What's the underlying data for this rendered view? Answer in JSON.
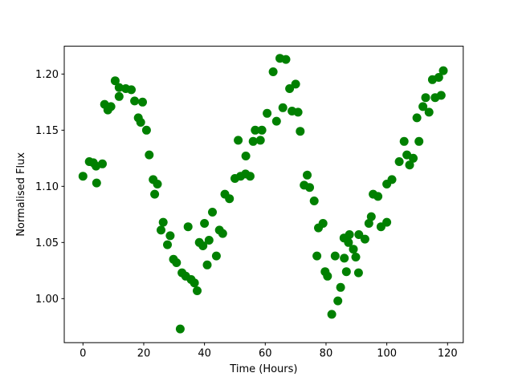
{
  "chart_data": {
    "type": "scatter",
    "title": "",
    "xlabel": "Time (Hours)",
    "ylabel": "Normalised Flux",
    "xlim": [
      -6.16,
      125.16
    ],
    "ylim": [
      0.9608,
      1.2248
    ],
    "grid": false,
    "legend": null,
    "marker": {
      "shape": "circle",
      "color": "#008000",
      "radius_px": 5.5
    },
    "axis_color": "#000000",
    "xticks": [
      {
        "v": 0,
        "label": "0"
      },
      {
        "v": 20,
        "label": "20"
      },
      {
        "v": 40,
        "label": "40"
      },
      {
        "v": 60,
        "label": "60"
      },
      {
        "v": 80,
        "label": "80"
      },
      {
        "v": 100,
        "label": "100"
      },
      {
        "v": 120,
        "label": "120"
      }
    ],
    "yticks": [
      {
        "v": 1.0,
        "label": "1.00"
      },
      {
        "v": 1.05,
        "label": "1.05"
      },
      {
        "v": 1.1,
        "label": "1.10"
      },
      {
        "v": 1.15,
        "label": "1.15"
      },
      {
        "v": 1.2,
        "label": "1.20"
      }
    ],
    "series": [
      {
        "name": "normalised-flux",
        "x": [
          0.0,
          2.1,
          3.4,
          4.3,
          4.5,
          6.4,
          7.1,
          8.2,
          9.2,
          10.6,
          11.9,
          11.9,
          14.1,
          15.9,
          17.0,
          18.2,
          19.0,
          19.6,
          20.9,
          21.8,
          23.1,
          23.6,
          24.5,
          25.7,
          26.4,
          27.8,
          28.7,
          29.8,
          30.8,
          32.0,
          32.6,
          33.8,
          34.6,
          35.6,
          36.7,
          37.6,
          38.3,
          39.5,
          40.0,
          40.9,
          41.5,
          42.6,
          43.9,
          44.9,
          46.0,
          46.7,
          48.2,
          50.0,
          51.1,
          51.9,
          53.5,
          53.6,
          55.0,
          56.0,
          56.7,
          58.4,
          58.9,
          60.6,
          62.6,
          63.7,
          64.8,
          65.8,
          66.8,
          68.0,
          68.8,
          70.0,
          70.8,
          71.5,
          72.8,
          73.8,
          74.6,
          76.1,
          77.0,
          77.5,
          79.0,
          79.7,
          80.5,
          81.9,
          83.0,
          83.9,
          84.8,
          85.9,
          86.0,
          86.7,
          87.4,
          87.7,
          89.0,
          89.8,
          90.7,
          90.8,
          92.8,
          94.1,
          94.9,
          95.5,
          97.1,
          98.1,
          100.0,
          100.0,
          101.7,
          104.1,
          105.7,
          106.6,
          107.5,
          108.7,
          109.9,
          110.6,
          111.9,
          112.8,
          113.9,
          115.0,
          115.9,
          117.1,
          117.9,
          118.6
        ],
        "y": [
          1.109,
          1.122,
          1.121,
          1.118,
          1.103,
          1.12,
          1.173,
          1.168,
          1.171,
          1.194,
          1.188,
          1.18,
          1.187,
          1.186,
          1.176,
          1.161,
          1.157,
          1.175,
          1.15,
          1.128,
          1.106,
          1.093,
          1.102,
          1.061,
          1.068,
          1.048,
          1.056,
          1.035,
          1.032,
          0.973,
          1.023,
          1.02,
          1.064,
          1.017,
          1.014,
          1.007,
          1.05,
          1.047,
          1.067,
          1.03,
          1.052,
          1.077,
          1.038,
          1.061,
          1.058,
          1.093,
          1.089,
          1.107,
          1.141,
          1.109,
          1.111,
          1.127,
          1.109,
          1.14,
          1.15,
          1.141,
          1.15,
          1.165,
          1.202,
          1.158,
          1.214,
          1.17,
          1.213,
          1.187,
          1.167,
          1.191,
          1.166,
          1.149,
          1.101,
          1.11,
          1.099,
          1.087,
          1.038,
          1.063,
          1.067,
          1.024,
          1.02,
          0.986,
          1.038,
          0.998,
          1.01,
          1.054,
          1.036,
          1.024,
          1.05,
          1.057,
          1.044,
          1.037,
          1.023,
          1.057,
          1.053,
          1.067,
          1.073,
          1.093,
          1.091,
          1.064,
          1.068,
          1.102,
          1.106,
          1.122,
          1.14,
          1.128,
          1.119,
          1.125,
          1.161,
          1.14,
          1.171,
          1.179,
          1.166,
          1.195,
          1.179,
          1.197,
          1.181,
          1.203
        ]
      }
    ]
  }
}
